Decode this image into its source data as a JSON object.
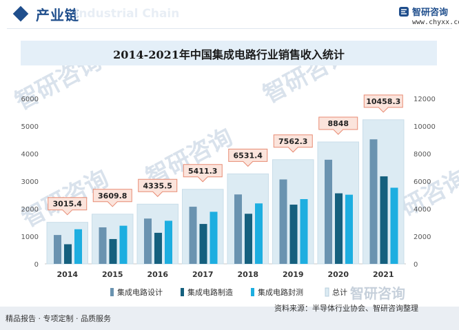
{
  "header": {
    "title": "产业链",
    "watermark": "Industrial Chain",
    "brand_name": "智研咨询",
    "brand_url": "www.chyxx.com"
  },
  "watermark_text": "智研咨询",
  "colors": {
    "primary": "#1f4e8c",
    "series_design": "#6a93b0",
    "series_manufacture": "#15607e",
    "series_packaging": "#1daee0",
    "series_total_fill": "#dcebf3",
    "label_box_fill": "#fbe4dc",
    "label_box_stroke": "#e88a72"
  },
  "chart_data": {
    "type": "bar",
    "title": "2014-2021年中国集成电路行业销售收入统计",
    "categories": [
      "2014",
      "2015",
      "2016",
      "2017",
      "2018",
      "2019",
      "2020",
      "2021"
    ],
    "series": [
      {
        "name": "集成电路设计",
        "axis": "left",
        "values": [
          1047.4,
          1325.0,
          1644.3,
          2073.5,
          2519.3,
          3063.5,
          3778.4,
          4519.0
        ]
      },
      {
        "name": "集成电路制造",
        "axis": "left",
        "values": [
          712.1,
          900.8,
          1126.9,
          1448.1,
          1818.2,
          2149.1,
          2560.1,
          3176.3
        ]
      },
      {
        "name": "集成电路封测",
        "axis": "left",
        "values": [
          1255.9,
          1384.0,
          1564.3,
          1889.7,
          2193.9,
          2349.7,
          2509.5,
          2763.0
        ]
      },
      {
        "name": "总计",
        "axis": "right",
        "values": [
          3015.4,
          3609.8,
          4335.5,
          5411.3,
          6531.4,
          7562.3,
          8848,
          10458.3
        ]
      }
    ],
    "total_labels": [
      "3015.4",
      "3609.8",
      "4335.5",
      "5411.3",
      "6531.4",
      "7562.3",
      "8848",
      "10458.3"
    ],
    "y_left": {
      "min": 0,
      "max": 6000,
      "ticks": [
        "0",
        "1000",
        "2000",
        "3000",
        "4000",
        "5000",
        "6000"
      ]
    },
    "y_right": {
      "min": 0,
      "max": 12000,
      "ticks": [
        "0",
        "2000",
        "4000",
        "6000",
        "8000",
        "10000",
        "12000"
      ]
    },
    "legend_position": "bottom",
    "grid": false
  },
  "footer": {
    "tagline": "精品报告 · 专项定制 · 品质服务",
    "source": "资料来源：半导体行业协会、智研咨询整理"
  }
}
